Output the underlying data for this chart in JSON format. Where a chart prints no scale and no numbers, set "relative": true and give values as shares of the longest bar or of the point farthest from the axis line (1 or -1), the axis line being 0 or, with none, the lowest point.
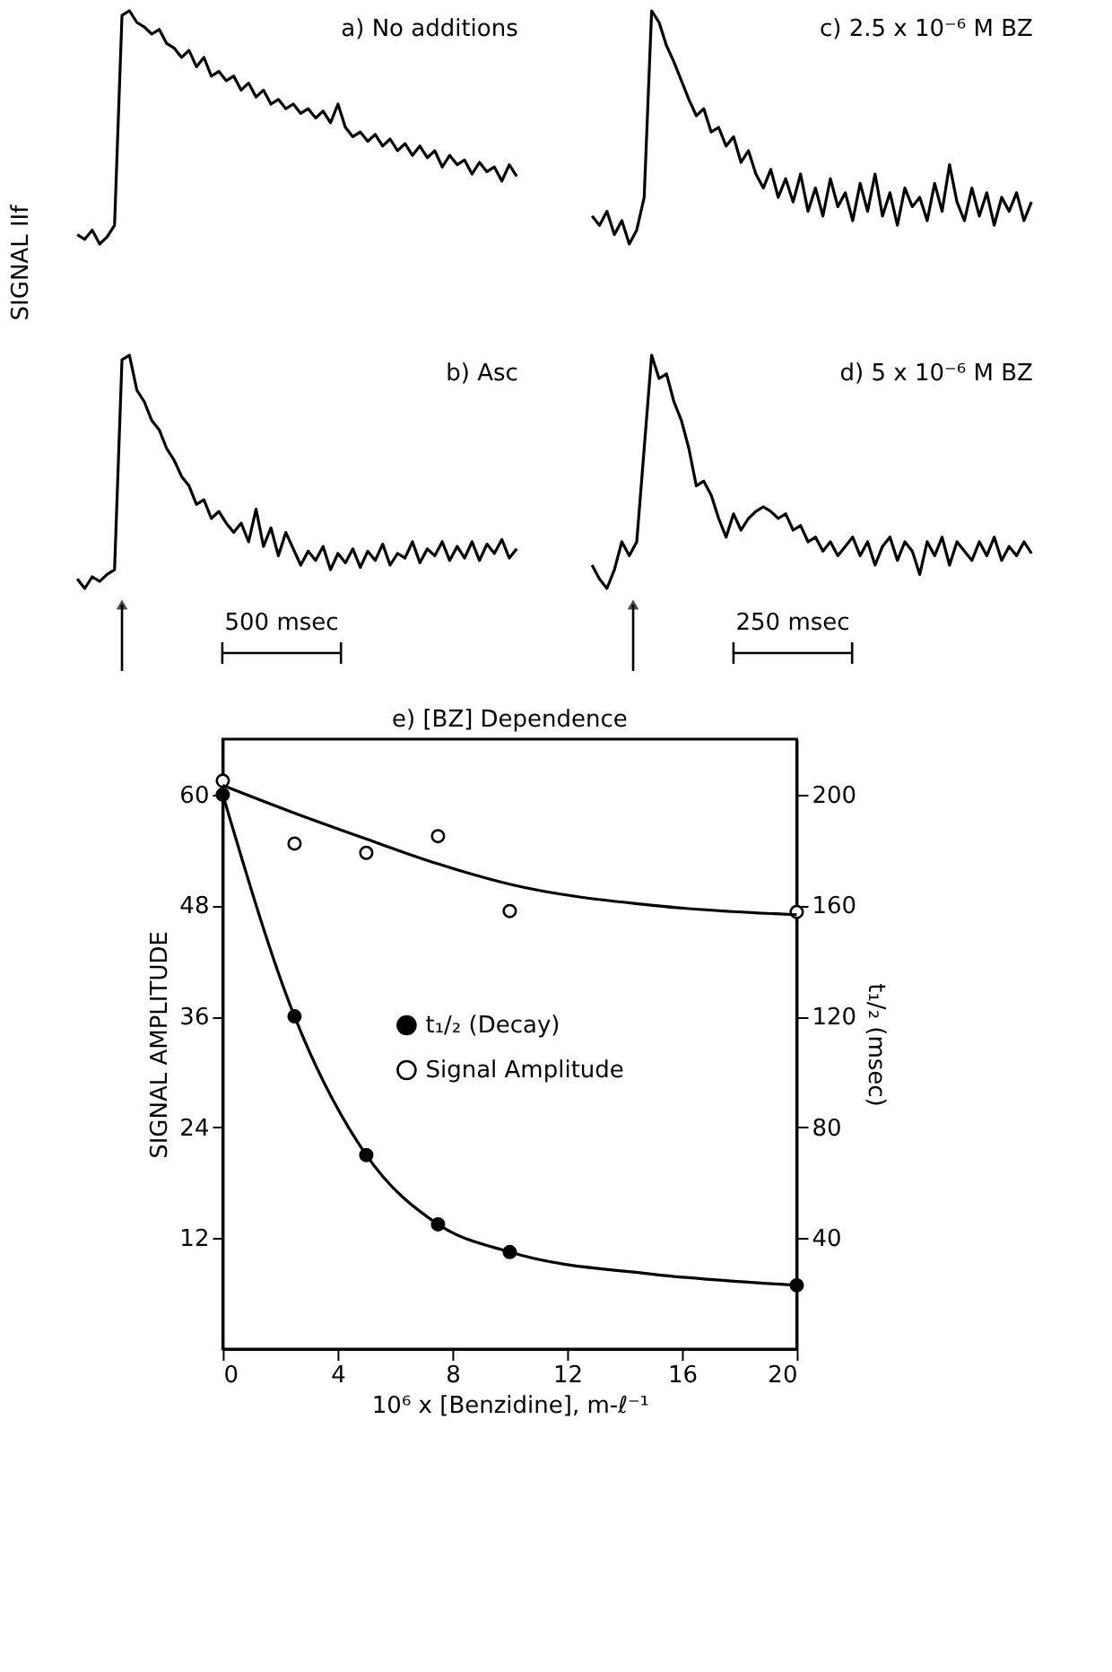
{
  "chart_data": [
    {
      "type": "line",
      "relative": true,
      "title": "a) No additions",
      "ylabel": "SIGNAL IIf",
      "categories": [
        null,
        null,
        null,
        null,
        null,
        null,
        null,
        null,
        null,
        null,
        null,
        null,
        null,
        null,
        null,
        null,
        null,
        null,
        null,
        null,
        null,
        null,
        null,
        null,
        null,
        null,
        null,
        null,
        null,
        null,
        null,
        null,
        null,
        null,
        null,
        null,
        null,
        null,
        null,
        null,
        null,
        null,
        null,
        null,
        null,
        null,
        null,
        null,
        null,
        null,
        null,
        null,
        null,
        null,
        null,
        null,
        null,
        null,
        null,
        null
      ],
      "series": [
        {
          "color": "#000000",
          "values": [
            0.04,
            0.02,
            0.06,
            0.0,
            0.03,
            0.08,
            0.98,
            1.0,
            0.95,
            0.93,
            0.9,
            0.92,
            0.86,
            0.84,
            0.8,
            0.83,
            0.76,
            0.8,
            0.72,
            0.74,
            0.7,
            0.72,
            0.66,
            0.69,
            0.63,
            0.66,
            0.6,
            0.62,
            0.58,
            0.6,
            0.56,
            0.58,
            0.54,
            0.57,
            0.52,
            0.6,
            0.5,
            0.46,
            0.48,
            0.44,
            0.47,
            0.42,
            0.45,
            0.4,
            0.43,
            0.38,
            0.42,
            0.37,
            0.4,
            0.33,
            0.38,
            0.34,
            0.36,
            0.3,
            0.35,
            0.31,
            0.33,
            0.27,
            0.34,
            0.29
          ]
        }
      ]
    },
    {
      "type": "line",
      "relative": true,
      "title": "c) 2.5 x 10⁻⁶ M  BZ",
      "categories": [
        null,
        null,
        null,
        null,
        null,
        null,
        null,
        null,
        null,
        null,
        null,
        null,
        null,
        null,
        null,
        null,
        null,
        null,
        null,
        null,
        null,
        null,
        null,
        null,
        null,
        null,
        null,
        null,
        null,
        null,
        null,
        null,
        null,
        null,
        null,
        null,
        null,
        null,
        null,
        null,
        null,
        null,
        null,
        null,
        null,
        null,
        null,
        null,
        null,
        null,
        null,
        null,
        null,
        null,
        null,
        null,
        null,
        null,
        null,
        null
      ],
      "series": [
        {
          "color": "#000000",
          "values": [
            0.12,
            0.08,
            0.14,
            0.04,
            0.1,
            0.0,
            0.06,
            0.2,
            1.0,
            0.95,
            0.85,
            0.78,
            0.7,
            0.62,
            0.55,
            0.58,
            0.48,
            0.5,
            0.42,
            0.46,
            0.35,
            0.4,
            0.3,
            0.24,
            0.32,
            0.2,
            0.28,
            0.18,
            0.3,
            0.14,
            0.24,
            0.12,
            0.28,
            0.16,
            0.22,
            0.1,
            0.26,
            0.14,
            0.3,
            0.12,
            0.22,
            0.08,
            0.24,
            0.16,
            0.2,
            0.1,
            0.26,
            0.14,
            0.34,
            0.18,
            0.1,
            0.24,
            0.12,
            0.22,
            0.08,
            0.2,
            0.14,
            0.22,
            0.1,
            0.18
          ]
        }
      ]
    },
    {
      "type": "line",
      "relative": true,
      "title": "b) Asc",
      "annotations": [
        "500 msec"
      ],
      "categories": [
        null,
        null,
        null,
        null,
        null,
        null,
        null,
        null,
        null,
        null,
        null,
        null,
        null,
        null,
        null,
        null,
        null,
        null,
        null,
        null,
        null,
        null,
        null,
        null,
        null,
        null,
        null,
        null,
        null,
        null,
        null,
        null,
        null,
        null,
        null,
        null,
        null,
        null,
        null,
        null,
        null,
        null,
        null,
        null,
        null,
        null,
        null,
        null,
        null,
        null,
        null,
        null,
        null,
        null,
        null,
        null,
        null,
        null,
        null,
        null
      ],
      "series": [
        {
          "color": "#000000",
          "values": [
            0.04,
            0.0,
            0.05,
            0.03,
            0.06,
            0.08,
            0.98,
            1.0,
            0.85,
            0.8,
            0.72,
            0.68,
            0.6,
            0.55,
            0.48,
            0.44,
            0.36,
            0.38,
            0.3,
            0.33,
            0.28,
            0.24,
            0.28,
            0.2,
            0.34,
            0.18,
            0.26,
            0.14,
            0.24,
            0.17,
            0.1,
            0.16,
            0.12,
            0.18,
            0.08,
            0.15,
            0.11,
            0.17,
            0.09,
            0.16,
            0.12,
            0.19,
            0.1,
            0.15,
            0.13,
            0.2,
            0.11,
            0.17,
            0.14,
            0.2,
            0.12,
            0.18,
            0.13,
            0.2,
            0.12,
            0.19,
            0.15,
            0.21,
            0.13,
            0.17
          ]
        }
      ]
    },
    {
      "type": "line",
      "relative": true,
      "title": "d) 5 x 10⁻⁶ M  BZ",
      "annotations": [
        "250 msec"
      ],
      "categories": [
        null,
        null,
        null,
        null,
        null,
        null,
        null,
        null,
        null,
        null,
        null,
        null,
        null,
        null,
        null,
        null,
        null,
        null,
        null,
        null,
        null,
        null,
        null,
        null,
        null,
        null,
        null,
        null,
        null,
        null,
        null,
        null,
        null,
        null,
        null,
        null,
        null,
        null,
        null,
        null,
        null,
        null,
        null,
        null,
        null,
        null,
        null,
        null,
        null,
        null,
        null,
        null,
        null,
        null,
        null,
        null,
        null,
        null,
        null,
        null
      ],
      "series": [
        {
          "color": "#000000",
          "values": [
            0.1,
            0.04,
            0.0,
            0.08,
            0.2,
            0.14,
            0.2,
            0.6,
            1.0,
            0.9,
            0.92,
            0.8,
            0.72,
            0.6,
            0.44,
            0.46,
            0.4,
            0.3,
            0.22,
            0.32,
            0.25,
            0.3,
            0.33,
            0.35,
            0.33,
            0.3,
            0.32,
            0.25,
            0.27,
            0.2,
            0.22,
            0.16,
            0.2,
            0.14,
            0.18,
            0.22,
            0.14,
            0.2,
            0.1,
            0.18,
            0.22,
            0.12,
            0.2,
            0.16,
            0.06,
            0.2,
            0.14,
            0.22,
            0.1,
            0.2,
            0.16,
            0.12,
            0.2,
            0.14,
            0.22,
            0.12,
            0.18,
            0.14,
            0.2,
            0.15
          ]
        }
      ]
    },
    {
      "type": "scatter",
      "title": "e) [BZ] Dependence",
      "xlabel": "10⁶ x [Benzidine], m-ℓ⁻¹",
      "ylabel": "SIGNAL  AMPLITUDE",
      "y2label": "t₁/₂  (msec)",
      "xlim": [
        0,
        20
      ],
      "xticks": [
        0,
        4,
        8,
        12,
        16,
        20
      ],
      "ylim": [
        0,
        66
      ],
      "yticks": [
        12,
        24,
        36,
        48,
        60
      ],
      "y2lim": [
        0,
        220
      ],
      "y2ticks": [
        40,
        80,
        120,
        160,
        200
      ],
      "grid": false,
      "legend": "right",
      "series": [
        {
          "name": "t₁/₂  (Decay)",
          "type": "scatter",
          "axis": "y2",
          "marker": "circle",
          "color": "#000000",
          "x": [
            0,
            2.5,
            5,
            7.5,
            10,
            20
          ],
          "values": [
            200,
            120,
            70,
            45,
            35,
            23
          ]
        },
        {
          "name": "Signal  Amplitude",
          "type": "scatter",
          "axis": "y",
          "marker": "circle",
          "color": "#ffffff",
          "x": [
            0,
            2.5,
            5,
            7.5,
            10,
            20
          ],
          "values": [
            61.5,
            54.7,
            53.7,
            55.5,
            47.4,
            47.3
          ]
        },
        {
          "type": "line",
          "axis": "y2",
          "marker": "none",
          "color": "#000000",
          "x": [
            0,
            2.5,
            5,
            7.5,
            10,
            15,
            20
          ],
          "values": [
            200,
            120,
            70,
            45,
            35,
            27,
            23
          ]
        },
        {
          "type": "line",
          "axis": "y",
          "marker": "none",
          "color": "#000000",
          "x": [
            0,
            2.5,
            5,
            7.5,
            10,
            15,
            20
          ],
          "values": [
            61,
            58,
            55.2,
            52.5,
            50.3,
            48,
            47
          ]
        }
      ]
    }
  ]
}
